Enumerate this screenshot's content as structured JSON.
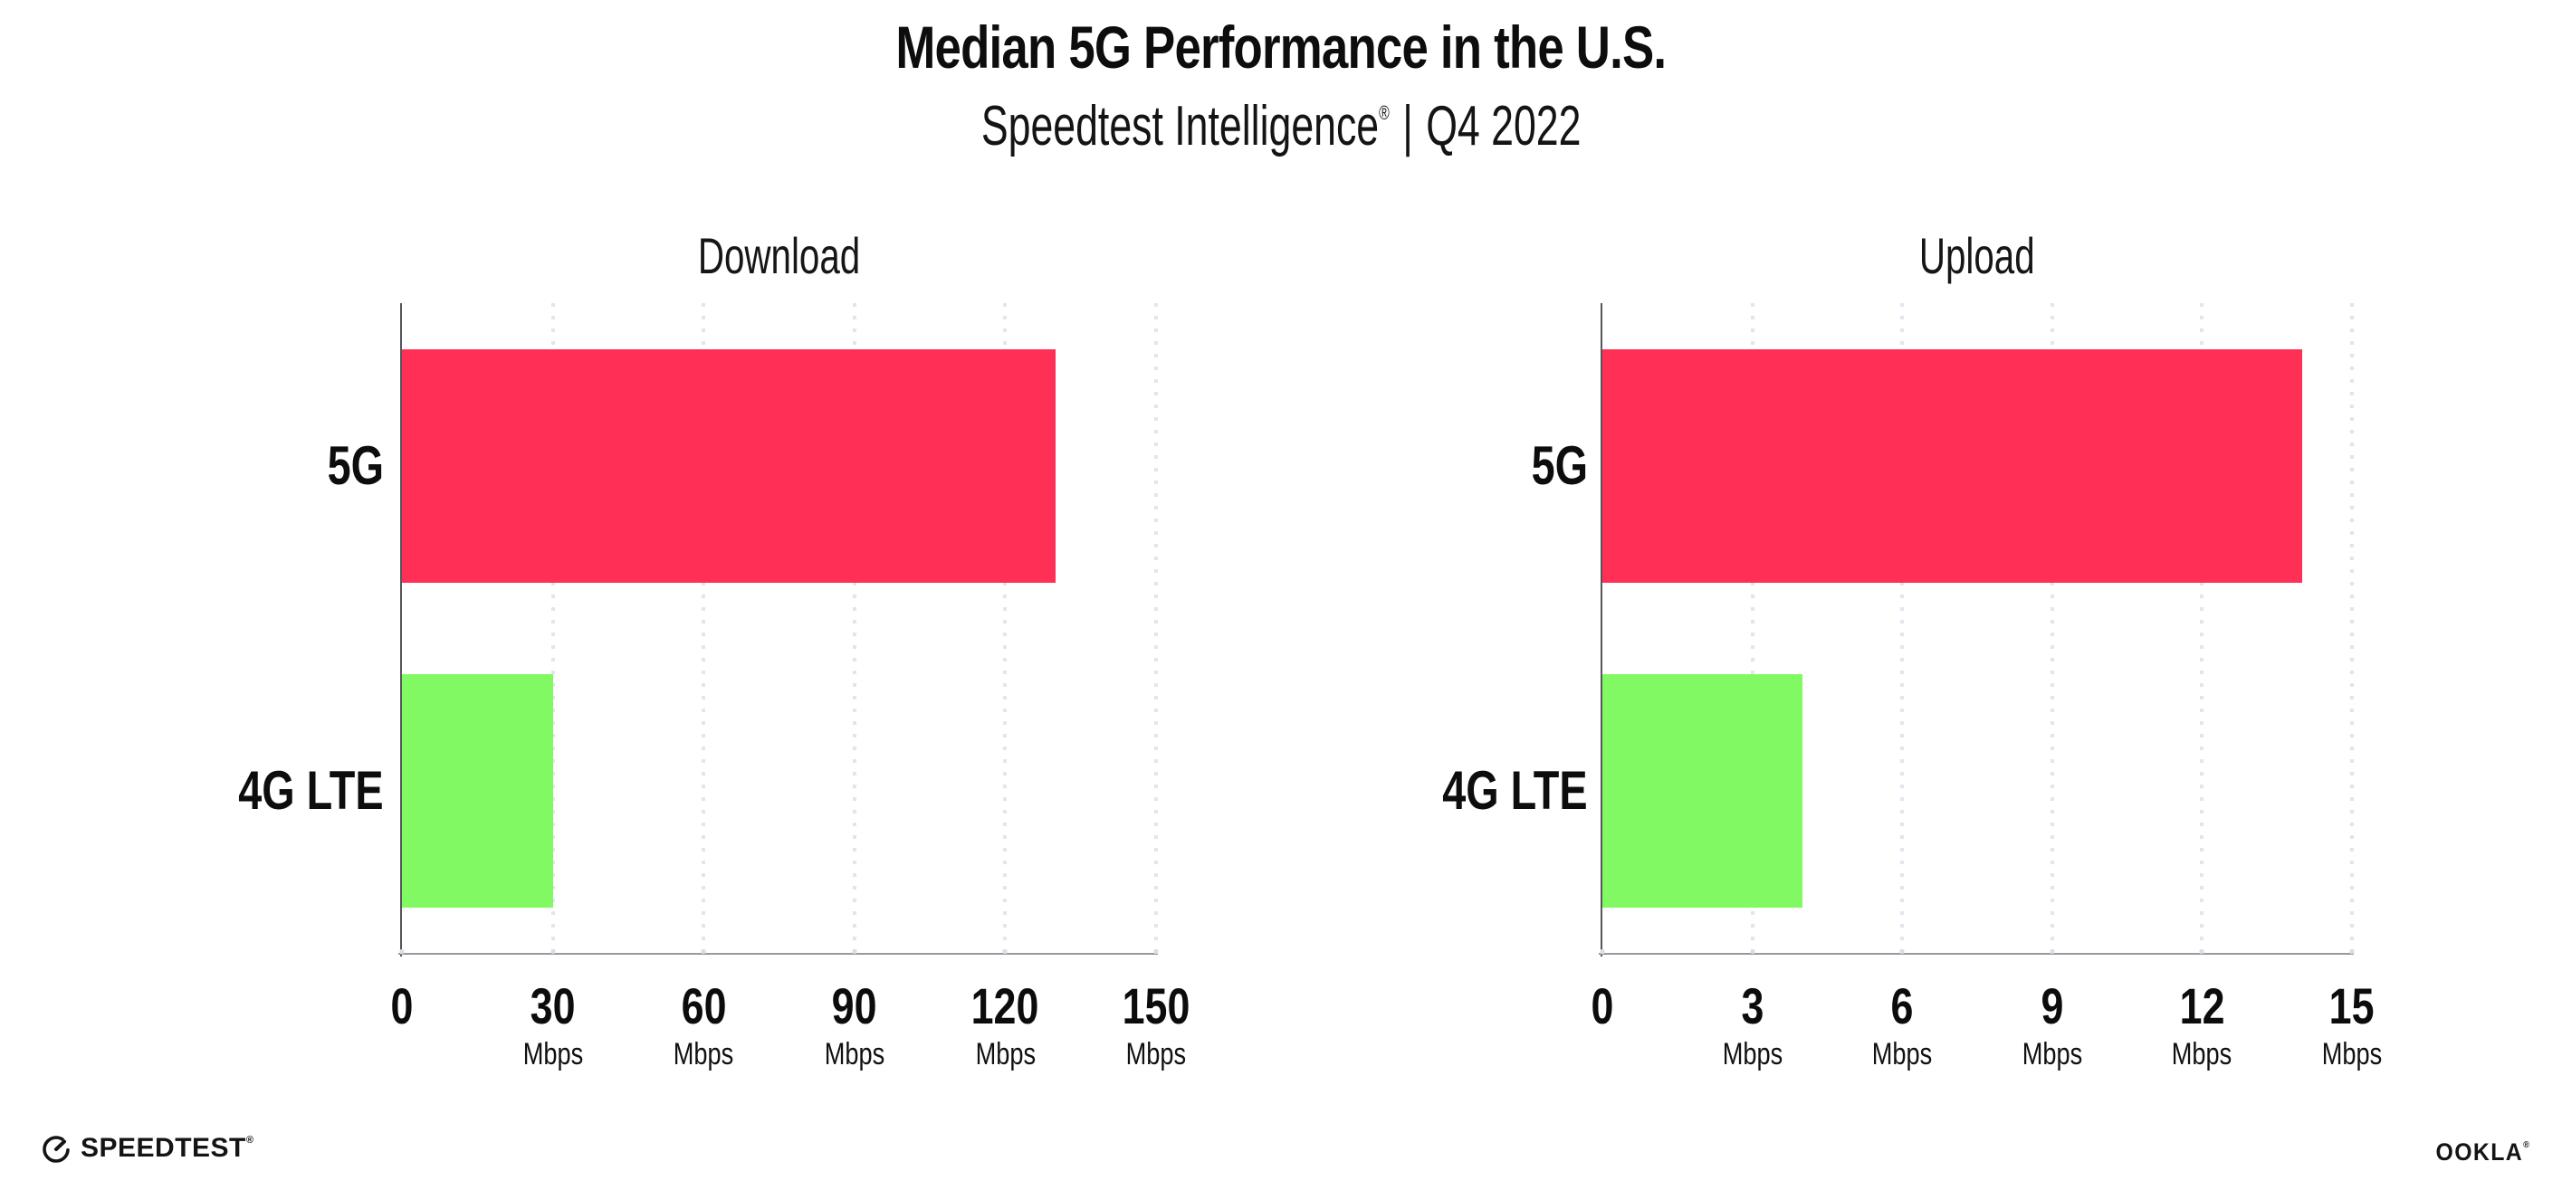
{
  "header": {
    "title": "Median 5G Performance in the U.S.",
    "subtitle": {
      "brand": "Speedtest Intelligence",
      "reg": "®",
      "separator": "|",
      "period": "Q4 2022"
    }
  },
  "chart_data": [
    {
      "type": "bar",
      "orientation": "horizontal",
      "title": "Download",
      "categories": [
        "5G",
        "4G LTE"
      ],
      "values": [
        130,
        30
      ],
      "unit": "Mbps",
      "xlim": [
        0,
        150
      ],
      "ticks": [
        0,
        30,
        60,
        90,
        120,
        150
      ],
      "bar_colors": [
        "#ff2f56",
        "#81f963"
      ],
      "grid": "dotted-vertical",
      "legend": "none"
    },
    {
      "type": "bar",
      "orientation": "horizontal",
      "title": "Upload",
      "categories": [
        "5G",
        "4G LTE"
      ],
      "values": [
        14,
        4
      ],
      "unit": "Mbps",
      "xlim": [
        0,
        15
      ],
      "ticks": [
        0,
        3,
        6,
        9,
        12,
        15
      ],
      "bar_colors": [
        "#ff2f56",
        "#81f963"
      ],
      "grid": "dotted-vertical",
      "legend": "none"
    }
  ],
  "footer": {
    "speedtest": {
      "label": "SPEEDTEST",
      "reg": "®",
      "icon": "speedtest-gauge-icon"
    },
    "ookla": {
      "label": "OOKLA",
      "reg": "®"
    }
  },
  "colors": {
    "bar_5g": "#ff2f56",
    "bar_4g_lte": "#81f963",
    "gridline": "#e4e4ee",
    "y_axis": "#55555a",
    "x_axis": "#98989d",
    "text": "#0d0d0d",
    "background": "#ffffff"
  }
}
